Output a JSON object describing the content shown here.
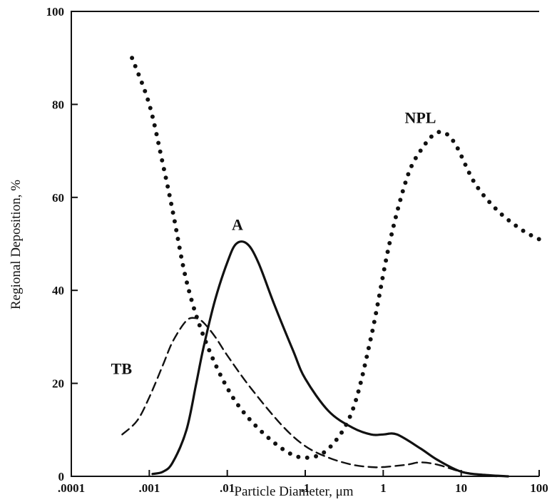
{
  "chart_data": {
    "type": "line",
    "xlabel": "Particle Diameter, μm",
    "ylabel": "Regional Deposition, %",
    "xscale": "log",
    "xlim": [
      0.0001,
      100
    ],
    "ylim": [
      0,
      100
    ],
    "grid": false,
    "legend": "none (curves labeled directly)",
    "x_ticks": [
      {
        "value": 0.0001,
        "label": ".0001"
      },
      {
        "value": 0.001,
        "label": ".001"
      },
      {
        "value": 0.01,
        "label": ".01"
      },
      {
        "value": 0.1,
        "label": ".1"
      },
      {
        "value": 1,
        "label": "1"
      },
      {
        "value": 10,
        "label": "10"
      },
      {
        "value": 100,
        "label": "100"
      }
    ],
    "y_ticks": [
      {
        "value": 0,
        "label": "0"
      },
      {
        "value": 20,
        "label": "20"
      },
      {
        "value": 40,
        "label": "40"
      },
      {
        "value": 60,
        "label": "60"
      },
      {
        "value": 80,
        "label": "80"
      },
      {
        "value": 100,
        "label": "100"
      }
    ],
    "series": [
      {
        "name": "NPL",
        "style": "dotted",
        "label_at": {
          "x": 3.0,
          "y": 76
        },
        "points": [
          {
            "x": 0.0006,
            "y": 90
          },
          {
            "x": 0.001,
            "y": 80
          },
          {
            "x": 0.0015,
            "y": 67
          },
          {
            "x": 0.002,
            "y": 57
          },
          {
            "x": 0.003,
            "y": 42
          },
          {
            "x": 0.005,
            "y": 30
          },
          {
            "x": 0.01,
            "y": 19
          },
          {
            "x": 0.02,
            "y": 12
          },
          {
            "x": 0.05,
            "y": 6
          },
          {
            "x": 0.1,
            "y": 4
          },
          {
            "x": 0.2,
            "y": 6
          },
          {
            "x": 0.4,
            "y": 14
          },
          {
            "x": 0.7,
            "y": 30
          },
          {
            "x": 1.2,
            "y": 50
          },
          {
            "x": 2,
            "y": 64
          },
          {
            "x": 3,
            "y": 70
          },
          {
            "x": 5,
            "y": 74
          },
          {
            "x": 8,
            "y": 72
          },
          {
            "x": 15,
            "y": 63
          },
          {
            "x": 30,
            "y": 57
          },
          {
            "x": 60,
            "y": 53
          },
          {
            "x": 100,
            "y": 51
          }
        ]
      },
      {
        "name": "A",
        "style": "solid",
        "label_at": {
          "x": 0.0135,
          "y": 53
        },
        "points": [
          {
            "x": 0.0011,
            "y": 0.5
          },
          {
            "x": 0.0015,
            "y": 1
          },
          {
            "x": 0.002,
            "y": 3
          },
          {
            "x": 0.003,
            "y": 10
          },
          {
            "x": 0.004,
            "y": 20
          },
          {
            "x": 0.005,
            "y": 28
          },
          {
            "x": 0.007,
            "y": 38
          },
          {
            "x": 0.01,
            "y": 46
          },
          {
            "x": 0.013,
            "y": 50
          },
          {
            "x": 0.018,
            "y": 50
          },
          {
            "x": 0.025,
            "y": 46
          },
          {
            "x": 0.04,
            "y": 37
          },
          {
            "x": 0.07,
            "y": 27
          },
          {
            "x": 0.1,
            "y": 21
          },
          {
            "x": 0.2,
            "y": 14
          },
          {
            "x": 0.4,
            "y": 10.5
          },
          {
            "x": 0.7,
            "y": 9
          },
          {
            "x": 1,
            "y": 9
          },
          {
            "x": 1.5,
            "y": 9
          },
          {
            "x": 3,
            "y": 6
          },
          {
            "x": 5,
            "y": 3.5
          },
          {
            "x": 10,
            "y": 1
          },
          {
            "x": 20,
            "y": 0.3
          },
          {
            "x": 40,
            "y": 0
          }
        ]
      },
      {
        "name": "TB",
        "style": "dashed",
        "label_at": {
          "x": 0.00044,
          "y": 22
        },
        "points": [
          {
            "x": 0.00045,
            "y": 9
          },
          {
            "x": 0.0007,
            "y": 12
          },
          {
            "x": 0.001,
            "y": 17
          },
          {
            "x": 0.0015,
            "y": 24
          },
          {
            "x": 0.002,
            "y": 29
          },
          {
            "x": 0.003,
            "y": 33.5
          },
          {
            "x": 0.004,
            "y": 34
          },
          {
            "x": 0.005,
            "y": 33
          },
          {
            "x": 0.007,
            "y": 30
          },
          {
            "x": 0.01,
            "y": 26
          },
          {
            "x": 0.02,
            "y": 19
          },
          {
            "x": 0.05,
            "y": 11
          },
          {
            "x": 0.1,
            "y": 6.5
          },
          {
            "x": 0.2,
            "y": 4
          },
          {
            "x": 0.4,
            "y": 2.5
          },
          {
            "x": 0.7,
            "y": 2
          },
          {
            "x": 1,
            "y": 2
          },
          {
            "x": 2,
            "y": 2.5
          },
          {
            "x": 3,
            "y": 3
          },
          {
            "x": 5,
            "y": 2.5
          },
          {
            "x": 10,
            "y": 1
          },
          {
            "x": 20,
            "y": 0.2
          },
          {
            "x": 30,
            "y": 0
          }
        ]
      }
    ]
  }
}
